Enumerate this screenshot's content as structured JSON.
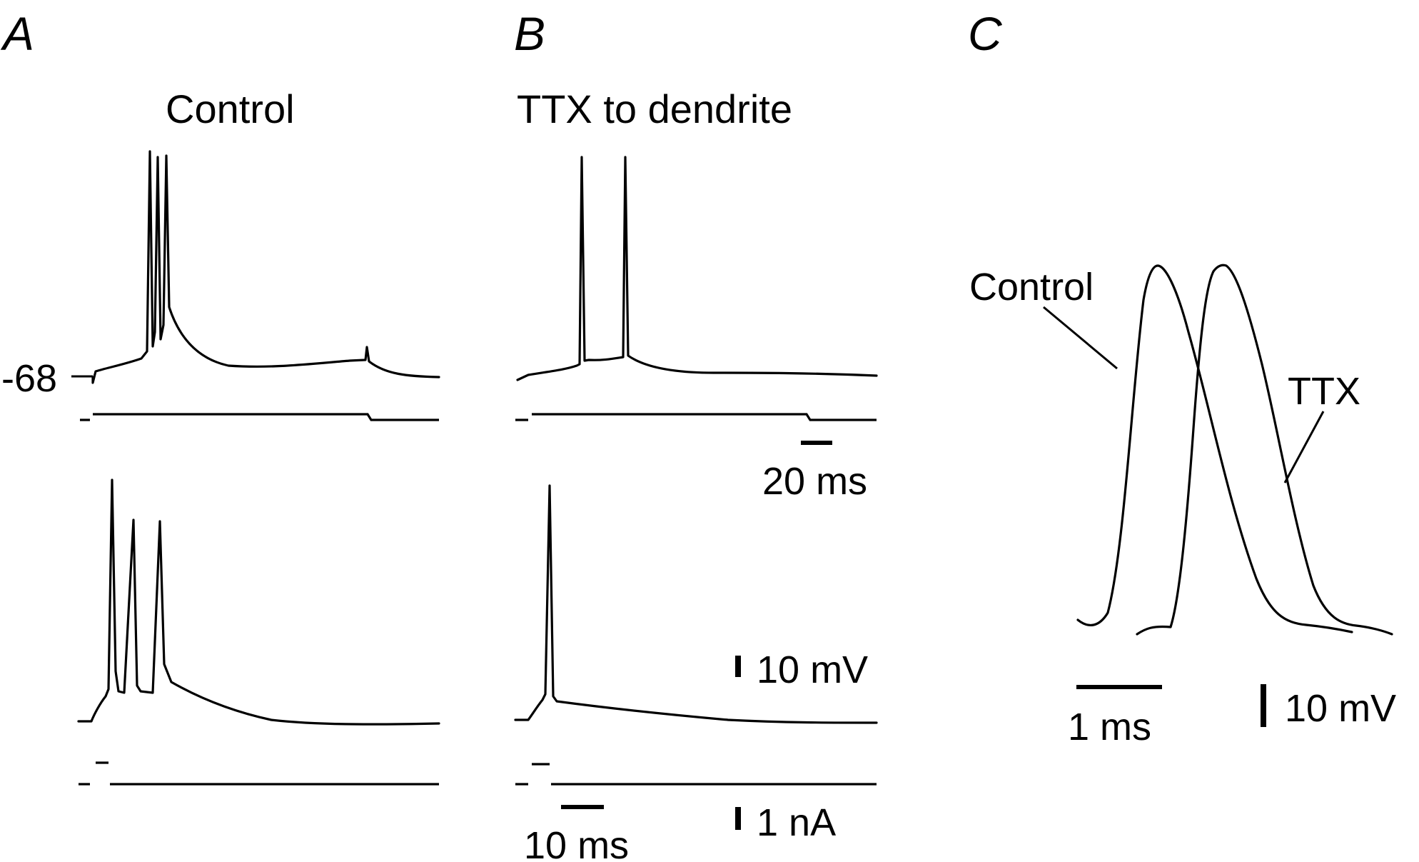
{
  "figure": {
    "panel_a": {
      "letter": "A",
      "title": "Control",
      "resting_potential_label": "-68"
    },
    "panel_b": {
      "letter": "B",
      "title": "TTX to dendrite",
      "scale_time_top": "20 ms",
      "scale_voltage": "10 mV",
      "scale_time_bottom": "10 ms",
      "scale_current": "1 nA"
    },
    "panel_c": {
      "letter": "C",
      "label_control": "Control",
      "label_ttx": "TTX",
      "scale_time": "1 ms",
      "scale_voltage": "10 mV"
    }
  },
  "chart_data": [
    {
      "type": "line",
      "panel": "A (top)",
      "series": [
        {
          "name": "Control",
          "spike_count": 3,
          "resting_mV": -68
        }
      ],
      "time_scale": "20 ms",
      "voltage_scale": "10 mV",
      "current_scale": "1 nA",
      "grid": false
    },
    {
      "type": "line",
      "panel": "B (top)",
      "series": [
        {
          "name": "TTX to dendrite",
          "spike_count": 2
        }
      ],
      "time_scale": "20 ms",
      "voltage_scale": "10 mV",
      "grid": false
    },
    {
      "type": "line",
      "panel": "A (bottom)",
      "series": [
        {
          "name": "Control",
          "spike_count": 3
        }
      ],
      "time_scale": "10 ms",
      "voltage_scale": "10 mV",
      "current_scale": "1 nA",
      "grid": false
    },
    {
      "type": "line",
      "panel": "B (bottom)",
      "series": [
        {
          "name": "TTX to dendrite",
          "spike_count": 1
        }
      ],
      "time_scale": "10 ms",
      "voltage_scale": "10 mV",
      "current_scale": "1 nA",
      "grid": false
    },
    {
      "type": "line",
      "panel": "C",
      "series": [
        {
          "name": "Control"
        },
        {
          "name": "TTX"
        }
      ],
      "time_scale": "1 ms",
      "voltage_scale": "10 mV",
      "grid": false
    }
  ]
}
